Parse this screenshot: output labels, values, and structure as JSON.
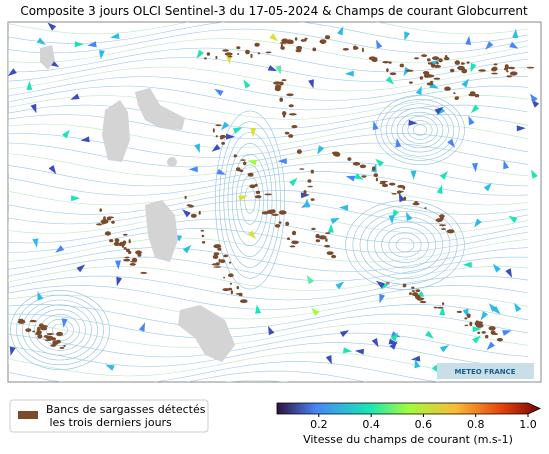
{
  "title": "Composite 3 jours OLCI Sentinel-3 du 17-05-2024 & Champs de courant Globcurrent",
  "logo": "METEO FRANCE",
  "legend": {
    "lines": [
      "Bancs de sargasses détectés",
      " les trois derniers jours"
    ]
  },
  "colorbar": {
    "label": "Vitesse du champs de courant (m.s-1)",
    "range": [
      0.04,
      1
    ],
    "ticks": [
      0.2,
      0.4,
      0.6,
      0.8,
      {
        "value": 1,
        "label": "1.0"
      }
    ]
  }
}
